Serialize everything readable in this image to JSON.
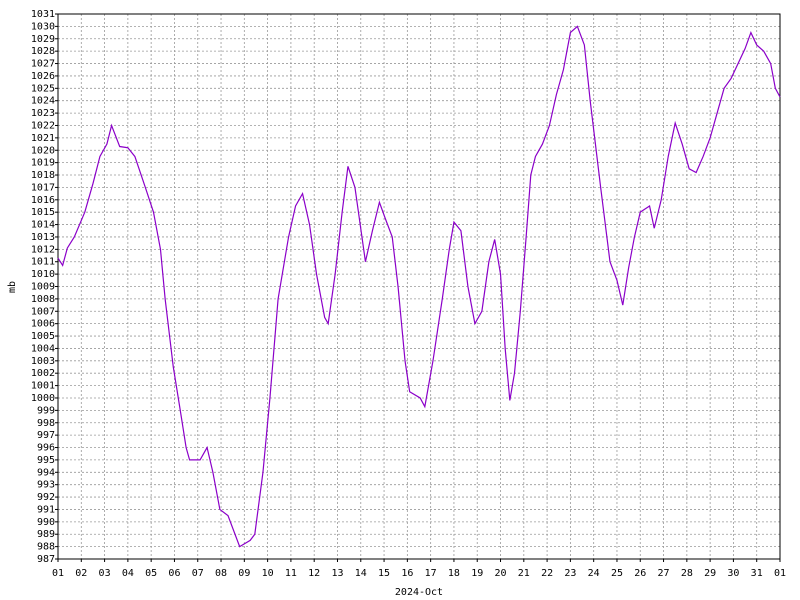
{
  "chart_data": {
    "type": "line",
    "x_label": "2024-Oct",
    "y_label": "mb",
    "color": "#8b00c9",
    "grid": true,
    "xlim": [
      0,
      31
    ],
    "ylim": [
      987,
      1031
    ],
    "xticks": [
      {
        "value": 0,
        "label": "01"
      },
      {
        "value": 1,
        "label": "02"
      },
      {
        "value": 2,
        "label": "03"
      },
      {
        "value": 3,
        "label": "04"
      },
      {
        "value": 4,
        "label": "05"
      },
      {
        "value": 5,
        "label": "06"
      },
      {
        "value": 6,
        "label": "07"
      },
      {
        "value": 7,
        "label": "08"
      },
      {
        "value": 8,
        "label": "09"
      },
      {
        "value": 9,
        "label": "10"
      },
      {
        "value": 10,
        "label": "11"
      },
      {
        "value": 11,
        "label": "12"
      },
      {
        "value": 12,
        "label": "13"
      },
      {
        "value": 13,
        "label": "14"
      },
      {
        "value": 14,
        "label": "15"
      },
      {
        "value": 15,
        "label": "16"
      },
      {
        "value": 16,
        "label": "17"
      },
      {
        "value": 17,
        "label": "18"
      },
      {
        "value": 18,
        "label": "19"
      },
      {
        "value": 19,
        "label": "20"
      },
      {
        "value": 20,
        "label": "21"
      },
      {
        "value": 21,
        "label": "22"
      },
      {
        "value": 22,
        "label": "23"
      },
      {
        "value": 23,
        "label": "24"
      },
      {
        "value": 24,
        "label": "25"
      },
      {
        "value": 25,
        "label": "26"
      },
      {
        "value": 26,
        "label": "27"
      },
      {
        "value": 27,
        "label": "28"
      },
      {
        "value": 28,
        "label": "29"
      },
      {
        "value": 29,
        "label": "30"
      },
      {
        "value": 30,
        "label": "31"
      },
      {
        "value": 31,
        "label": "01"
      }
    ],
    "yticks": [
      987,
      988,
      989,
      990,
      991,
      992,
      993,
      994,
      995,
      996,
      997,
      998,
      999,
      1000,
      1001,
      1002,
      1003,
      1004,
      1005,
      1006,
      1007,
      1008,
      1009,
      1010,
      1011,
      1012,
      1013,
      1014,
      1015,
      1016,
      1017,
      1018,
      1019,
      1020,
      1021,
      1022,
      1023,
      1024,
      1025,
      1026,
      1027,
      1028,
      1029,
      1030,
      1031
    ],
    "x": [
      0,
      0.2,
      0.4,
      0.7,
      1.15,
      1.5,
      1.8,
      2.1,
      2.3,
      2.65,
      3.0,
      3.3,
      3.75,
      4.1,
      4.4,
      4.6,
      4.95,
      5.25,
      5.5,
      5.65,
      6.1,
      6.4,
      6.65,
      6.95,
      7.3,
      7.8,
      8.25,
      8.45,
      8.8,
      9.1,
      9.45,
      9.9,
      10.2,
      10.5,
      10.8,
      11.1,
      11.45,
      11.6,
      11.9,
      12.2,
      12.45,
      12.75,
      13.05,
      13.2,
      13.5,
      13.8,
      14.05,
      14.35,
      14.6,
      14.9,
      15.1,
      15.55,
      15.75,
      16.1,
      16.5,
      16.8,
      17.0,
      17.3,
      17.6,
      17.9,
      18.2,
      18.5,
      18.75,
      19.0,
      19.2,
      19.4,
      19.6,
      19.85,
      20.1,
      20.3,
      20.5,
      20.8,
      21.1,
      21.4,
      21.7,
      22.0,
      22.3,
      22.6,
      22.85,
      23.3,
      23.7,
      24.0,
      24.25,
      24.5,
      24.75,
      25.0,
      25.4,
      25.6,
      25.9,
      26.2,
      26.5,
      26.8,
      27.1,
      27.4,
      27.7,
      28.0,
      28.3,
      28.6,
      28.9,
      29.2,
      29.5,
      29.75,
      30.0,
      30.3,
      30.6,
      30.8,
      31.0
    ],
    "values": [
      1011.3,
      1010.7,
      1012.1,
      1013,
      1015,
      1017.3,
      1019.5,
      1020.5,
      1022,
      1020.3,
      1020.2,
      1019.5,
      1017,
      1015,
      1012,
      1008,
      1002.5,
      999,
      996,
      995,
      995,
      996,
      994,
      991,
      990.5,
      988,
      988.5,
      989,
      994,
      1000,
      1008,
      1013,
      1015.5,
      1016.5,
      1014,
      1010,
      1006.5,
      1006,
      1010,
      1015,
      1018.7,
      1017,
      1013,
      1011,
      1013.5,
      1015.8,
      1014.5,
      1013,
      1009,
      1003,
      1000.5,
      1000,
      999.3,
      1003,
      1008,
      1012,
      1014.2,
      1013.5,
      1009,
      1006,
      1007,
      1011,
      1012.8,
      1010,
      1004,
      999.8,
      1002,
      1007,
      1013,
      1018,
      1019.5,
      1020.5,
      1022,
      1024.5,
      1026.5,
      1029.5,
      1030,
      1028.5,
      1024,
      1017,
      1011,
      1009.5,
      1007.5,
      1010.5,
      1013,
      1015,
      1015.5,
      1013.7,
      1016,
      1019.5,
      1022.2,
      1020.5,
      1018.5,
      1018.2,
      1019.5,
      1021,
      1023,
      1025,
      1025.8,
      1027,
      1028.2,
      1029.5,
      1028.5,
      1028,
      1027,
      1025,
      1024.3
    ]
  }
}
